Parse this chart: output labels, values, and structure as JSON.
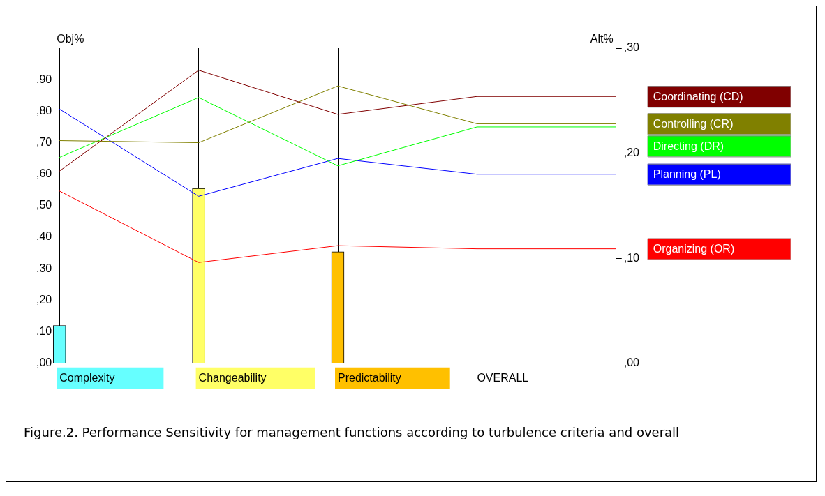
{
  "chart_data": {
    "type": "line",
    "categories": [
      "Complexity",
      "Changeability",
      "Predictability",
      "OVERALL",
      null
    ],
    "ylabel": "Obj%",
    "y2label": "Alt%",
    "ylim": [
      0,
      100
    ],
    "yticks": [
      {
        "value": 0,
        "label": ",00"
      },
      {
        "value": 10,
        "label": ",10"
      },
      {
        "value": 20,
        "label": ",20"
      },
      {
        "value": 30,
        "label": ",30"
      },
      {
        "value": 40,
        "label": ",40"
      },
      {
        "value": 50,
        "label": ",50"
      },
      {
        "value": 60,
        "label": ",60"
      },
      {
        "value": 70,
        "label": ",70"
      },
      {
        "value": 80,
        "label": ",80"
      },
      {
        "value": 90,
        "label": ",90"
      }
    ],
    "y2lim": [
      0,
      30
    ],
    "y2ticks": [
      {
        "value": 0,
        "label": ",00"
      },
      {
        "value": 10,
        "label": ",10"
      },
      {
        "value": 20,
        "label": ",20"
      },
      {
        "value": 30,
        "label": ",30"
      }
    ],
    "grid": "x",
    "legend": "right",
    "series": [
      {
        "type": "bar",
        "axis": "y",
        "colors": [
          "#66ffff",
          "#ffff66",
          "#ffc000",
          null,
          null
        ],
        "values": [
          12,
          55.5,
          35.4,
          null,
          null
        ]
      },
      {
        "name": "Coordinating (CD)",
        "color": "#800000",
        "axis": "y2",
        "values": [
          18.3,
          27.9,
          23.7,
          25.4,
          25.4
        ]
      },
      {
        "name": "Controlling (CR)",
        "color": "#808000",
        "axis": "y2",
        "values": [
          21.2,
          21.0,
          26.4,
          22.8,
          22.8
        ]
      },
      {
        "name": "Directing (DR)",
        "color": "#00ff00",
        "axis": "y2",
        "values": [
          19.6,
          25.3,
          18.8,
          22.5,
          22.5
        ]
      },
      {
        "name": "Planning (PL)",
        "color": "#0000ff",
        "axis": "y2",
        "values": [
          24.2,
          15.9,
          19.5,
          18.0,
          18.0
        ]
      },
      {
        "name": "Organizing (OR)",
        "color": "#ff0000",
        "axis": "y2",
        "values": [
          16.4,
          9.6,
          11.2,
          10.9,
          10.9
        ]
      }
    ],
    "annotations": [
      "Figure.2. Performance Sensitivity for management functions according to turbulence criteria and overall"
    ]
  }
}
